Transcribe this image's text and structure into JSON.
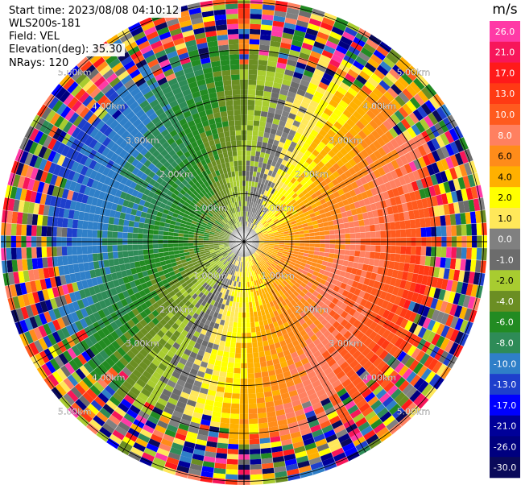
{
  "info": {
    "start_time": "Start time: 2023/08/08 04:10:12",
    "instrument": "WLS200s-181",
    "field": "Field: VEL",
    "elevation": "Elevation(deg): 35.30",
    "nrays": "NRays: 120"
  },
  "chart_data": {
    "type": "heatmap",
    "projection": "polar-ppi",
    "ring_labels": [
      "1.00km",
      "2.00km",
      "3.00km",
      "4.00km",
      "5.00km"
    ],
    "colorbar": {
      "unit": "m/s",
      "ticks": [
        "26.0",
        "21.0",
        "17.0",
        "13.0",
        "10.0",
        "8.0",
        "6.0",
        "4.0",
        "2.0",
        "1.0",
        "0.0",
        "-1.0",
        "-2.0",
        "-4.0",
        "-6.0",
        "-8.0",
        "-10.0",
        "-13.0",
        "-17.0",
        "-21.0",
        "-26.0",
        "-30.0"
      ],
      "colors": [
        "#ff3aa6",
        "#f7165a",
        "#ff1a1a",
        "#ff3a14",
        "#ff5a1e",
        "#ff8060",
        "#ff8c1a",
        "#ffb000",
        "#ffff00",
        "#ffe85a",
        "#808080",
        "#6c6c6c",
        "#a8cc30",
        "#6b8e23",
        "#228b22",
        "#2e8b57",
        "#2f7fc8",
        "#1e3fcc",
        "#0000ff",
        "#000099",
        "#00007f",
        "#0a0a5a"
      ]
    }
  }
}
